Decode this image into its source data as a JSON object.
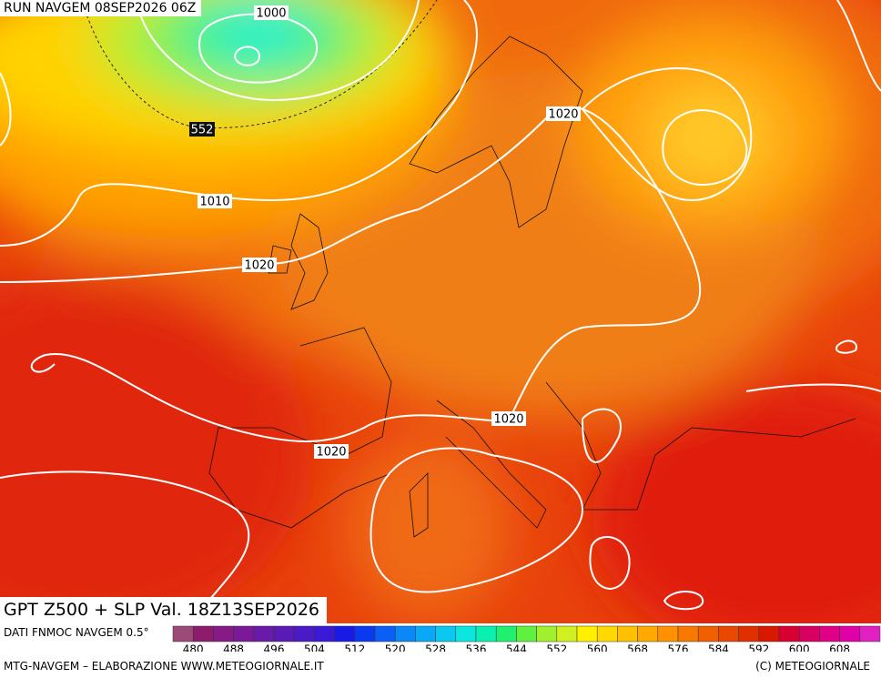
{
  "header": {
    "run": "RUN NAVGEM 08SEP2026 06Z"
  },
  "map": {
    "contour_labels": [
      "1000",
      "552",
      "1010",
      "1020",
      "1020",
      "1020",
      "1020"
    ]
  },
  "caption": {
    "valid": "GPT Z500 + SLP Val. 18Z13SEP2026",
    "source": "DATI FNMOC NAVGEM 0.5°"
  },
  "colorbar": {
    "colors": [
      "#9c4a78",
      "#8e1c6c",
      "#861a86",
      "#7a1a98",
      "#6a1aa8",
      "#5a1ab6",
      "#4a1ac6",
      "#3a1ad6",
      "#1a1ae6",
      "#0a3af0",
      "#0a60f5",
      "#0a88f8",
      "#0aa8f8",
      "#0ac8f0",
      "#0ae6e0",
      "#0af0b0",
      "#20f070",
      "#60f040",
      "#a0f030",
      "#d0f020",
      "#fff000",
      "#ffd800",
      "#ffc000",
      "#ffa800",
      "#ff9000",
      "#f87800",
      "#f06000",
      "#e84800",
      "#e03000",
      "#d81800",
      "#d80030",
      "#d80060",
      "#e00088",
      "#e000a8",
      "#e020c0"
    ],
    "ticks": [
      480,
      488,
      496,
      504,
      512,
      520,
      528,
      536,
      544,
      552,
      560,
      568,
      576,
      584,
      592,
      600,
      608
    ]
  },
  "footer": {
    "left": "MTG-NAVGEM – ELABORAZIONE WWW.METEOGIORNALE.IT",
    "right": "(C) METEOGIORNALE"
  }
}
